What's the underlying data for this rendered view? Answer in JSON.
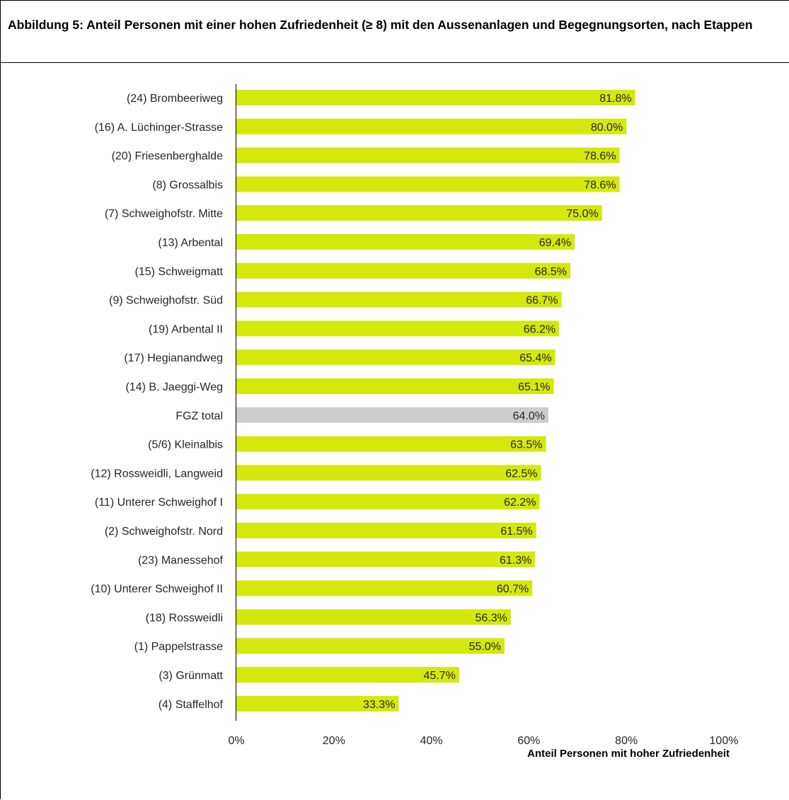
{
  "figure": {
    "title": "Abbildung 5: Anteil Personen mit einer hohen Zufriedenheit (≥ 8) mit den Aussenanlagen und Begegnung­sorten, nach Etappen"
  },
  "colors": {
    "bar": "#d4e80c",
    "total_bar": "#cccccc",
    "axis": "#000000"
  },
  "chart_data": {
    "type": "bar",
    "orientation": "horizontal",
    "title": "Abbildung 5: Anteil Personen mit einer hohen Zufriedenheit (≥ 8) mit den Aussenanlagen und Begegnung­sorten, nach Etappen",
    "xlabel": "Anteil Personen mit hoher Zufriedenheit",
    "ylabel": "",
    "xlim": [
      0,
      100
    ],
    "xticks": [
      0,
      20,
      40,
      60,
      80,
      100
    ],
    "xtick_labels": [
      "0%",
      "20%",
      "40%",
      "60%",
      "80%",
      "100%"
    ],
    "grid": false,
    "categories": [
      "(24) Brombeeriweg",
      "(16) A. Lüchinger-Strasse",
      "(20) Friesenberghalde",
      "(8) Grossalbis",
      "(7) Schweighofstr. Mitte",
      "(13) Arbental",
      "(15) Schweigmatt",
      "(9) Schweighofstr. Süd",
      "(19) Arbental II",
      "(17) Hegianandweg",
      "(14) B. Jaeggi-Weg",
      "FGZ total",
      "(5/6) Kleinalbis",
      "(12) Rossweidli, Langweid",
      "(11) Unterer Schweighof I",
      "(2) Schweighofstr. Nord",
      "(23) Manessehof",
      "(10) Unterer Schweighof II",
      "(18) Rossweidli",
      "(1) Pappelstrasse",
      "(3) Grünmatt",
      "(4) Staffelhof"
    ],
    "values": [
      81.8,
      80.0,
      78.6,
      78.6,
      75.0,
      69.4,
      68.5,
      66.7,
      66.2,
      65.4,
      65.1,
      64.0,
      63.5,
      62.5,
      62.2,
      61.5,
      61.3,
      60.7,
      56.3,
      55.0,
      45.7,
      33.3
    ],
    "value_labels": [
      "81.8%",
      "80.0%",
      "78.6%",
      "78.6%",
      "75.0%",
      "69.4%",
      "68.5%",
      "66.7%",
      "66.2%",
      "65.4%",
      "65.1%",
      "64.0%",
      "63.5%",
      "62.5%",
      "62.2%",
      "61.5%",
      "61.3%",
      "60.7%",
      "56.3%",
      "55.0%",
      "45.7%",
      "33.3%"
    ],
    "highlight_category": "FGZ total"
  }
}
